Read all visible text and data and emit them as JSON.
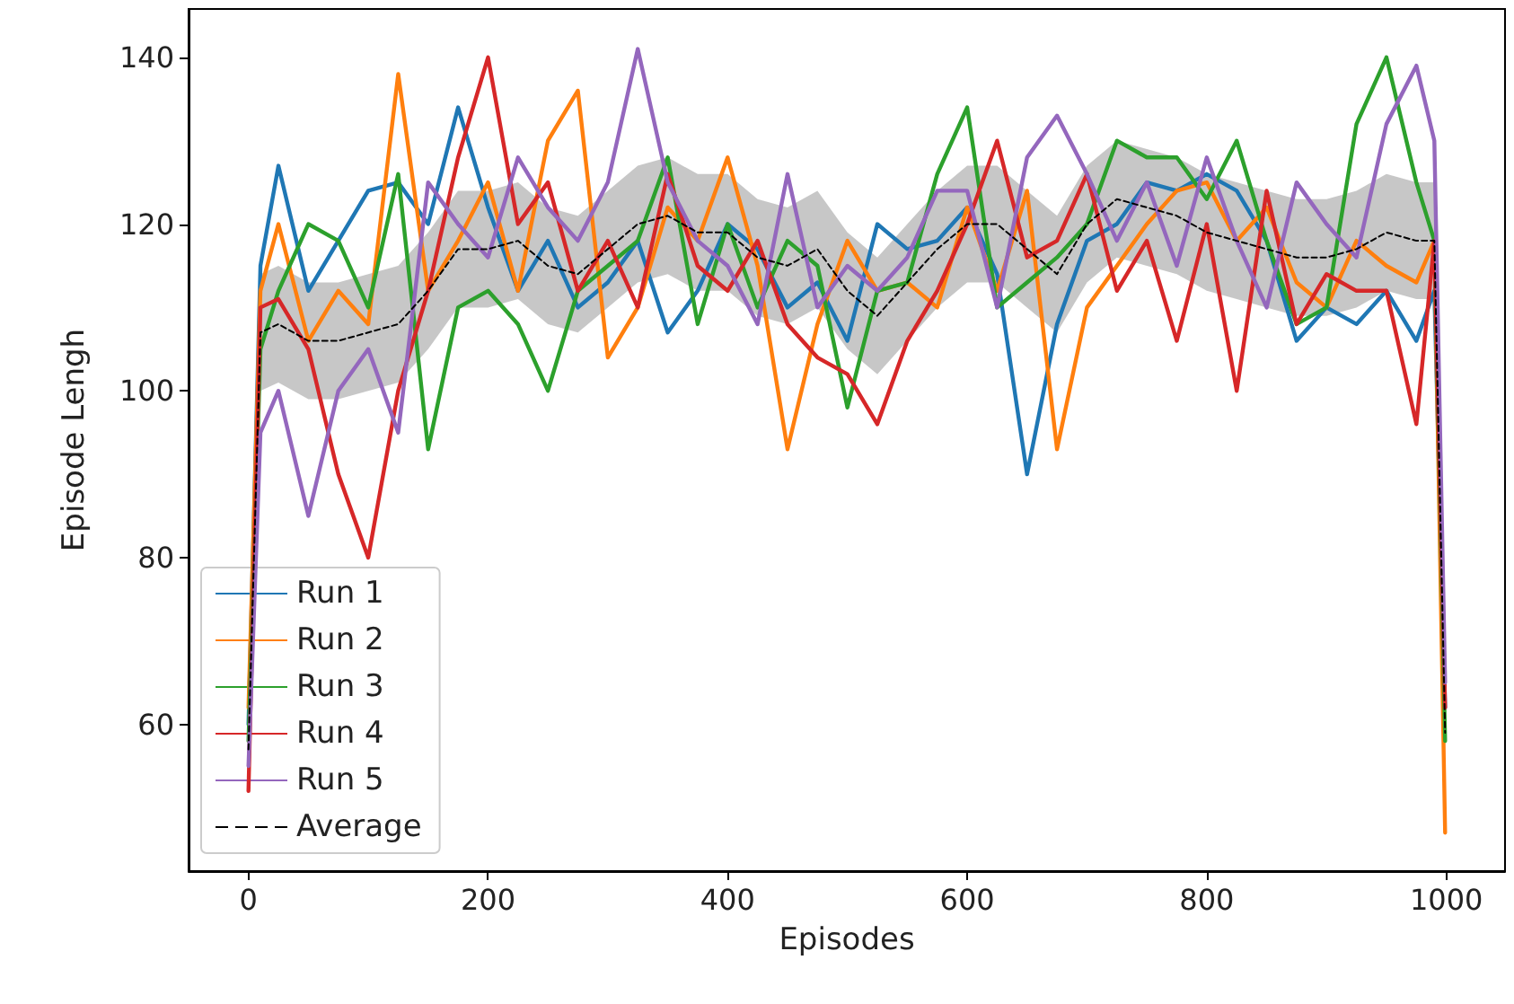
{
  "chart_data": {
    "type": "line",
    "xlabel": "Episodes",
    "ylabel": "Episode Lengh",
    "x": [
      0,
      10,
      25,
      50,
      75,
      100,
      125,
      150,
      175,
      200,
      225,
      250,
      275,
      300,
      325,
      350,
      375,
      400,
      425,
      450,
      475,
      500,
      525,
      550,
      575,
      600,
      625,
      650,
      675,
      700,
      725,
      750,
      775,
      800,
      825,
      850,
      875,
      900,
      925,
      950,
      975,
      990,
      999
    ],
    "xlim": [
      -50,
      1049
    ],
    "ylim": [
      42.4,
      145.8
    ],
    "xticks": [
      0,
      200,
      400,
      600,
      800,
      1000
    ],
    "yticks": [
      60,
      80,
      100,
      120,
      140
    ],
    "legend": "bottom left",
    "series": [
      {
        "name": "Run 1",
        "color": "#1f77b4",
        "values": [
          60,
          115,
          127,
          112,
          118,
          124,
          125,
          120,
          134,
          122,
          112,
          118,
          110,
          113,
          118,
          107,
          112,
          120,
          117,
          110,
          113,
          106,
          120,
          117,
          118,
          122,
          114,
          90,
          108,
          118,
          120,
          125,
          124,
          126,
          124,
          118,
          106,
          110,
          108,
          112,
          106,
          112,
          62
        ]
      },
      {
        "name": "Run 2",
        "color": "#ff7f0e",
        "values": [
          62,
          112,
          120,
          106,
          112,
          108,
          138,
          112,
          118,
          125,
          112,
          130,
          136,
          104,
          110,
          122,
          118,
          128,
          115,
          93,
          108,
          118,
          112,
          113,
          110,
          122,
          112,
          124,
          93,
          110,
          115,
          120,
          124,
          125,
          118,
          122,
          113,
          110,
          118,
          115,
          113,
          118,
          47
        ]
      },
      {
        "name": "Run 3",
        "color": "#2ca02c",
        "values": [
          58,
          105,
          112,
          120,
          118,
          110,
          126,
          93,
          110,
          112,
          108,
          100,
          112,
          115,
          118,
          128,
          108,
          120,
          110,
          118,
          115,
          98,
          112,
          113,
          126,
          134,
          110,
          113,
          116,
          120,
          130,
          128,
          128,
          123,
          130,
          118,
          108,
          110,
          132,
          140,
          125,
          118,
          58
        ]
      },
      {
        "name": "Run 4",
        "color": "#d62728",
        "values": [
          52,
          110,
          111,
          105,
          90,
          80,
          100,
          112,
          128,
          140,
          120,
          125,
          112,
          118,
          110,
          126,
          115,
          112,
          118,
          108,
          104,
          102,
          96,
          106,
          112,
          120,
          130,
          116,
          118,
          126,
          112,
          118,
          106,
          120,
          100,
          124,
          108,
          114,
          112,
          112,
          96,
          118,
          62
        ]
      },
      {
        "name": "Run 5",
        "color": "#9467bd",
        "values": [
          55,
          95,
          100,
          85,
          100,
          105,
          95,
          125,
          120,
          116,
          128,
          122,
          118,
          125,
          141,
          125,
          118,
          115,
          108,
          126,
          110,
          115,
          112,
          116,
          124,
          124,
          110,
          128,
          133,
          126,
          118,
          125,
          115,
          128,
          118,
          110,
          125,
          120,
          116,
          132,
          139,
          130,
          65
        ]
      },
      {
        "name": "Average",
        "color": "#000000",
        "line_style": "dashed",
        "values": [
          57,
          107,
          108,
          106,
          106,
          107,
          108,
          112,
          117,
          117,
          118,
          115,
          114,
          117,
          120,
          121,
          119,
          119,
          116,
          115,
          117,
          112,
          109,
          113,
          117,
          120,
          120,
          117,
          114,
          120,
          123,
          122,
          121,
          119,
          118,
          117,
          116,
          116,
          117,
          119,
          118,
          118,
          59
        ],
        "lower": [
          53,
          100,
          101,
          99,
          99,
          100,
          101,
          105,
          110,
          110,
          111,
          108,
          107,
          110,
          113,
          114,
          112,
          112,
          109,
          108,
          110,
          105,
          102,
          106,
          110,
          113,
          113,
          110,
          107,
          113,
          116,
          115,
          114,
          112,
          111,
          110,
          109,
          109,
          110,
          112,
          111,
          111,
          52
        ],
        "upper": [
          61,
          114,
          115,
          113,
          113,
          114,
          115,
          119,
          124,
          124,
          125,
          122,
          121,
          124,
          127,
          128,
          126,
          126,
          123,
          122,
          124,
          119,
          116,
          120,
          124,
          127,
          127,
          124,
          121,
          127,
          130,
          129,
          128,
          126,
          125,
          124,
          123,
          123,
          124,
          126,
          125,
          125,
          66
        ]
      }
    ]
  }
}
